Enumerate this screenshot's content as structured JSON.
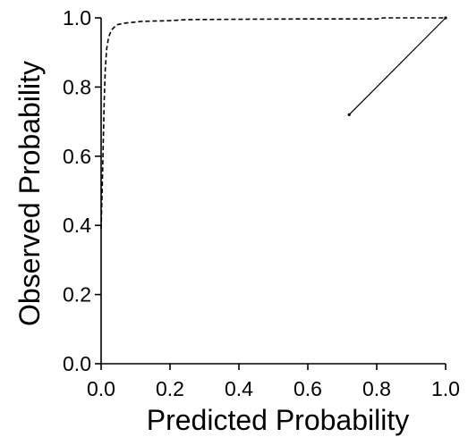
{
  "chart_data": {
    "type": "line",
    "title": "",
    "xlabel": "Predicted Probability",
    "ylabel": "Observed Probability",
    "xlim": [
      0.0,
      1.0
    ],
    "ylim": [
      0.0,
      1.0
    ],
    "x_ticks": [
      "0.0",
      "0.2",
      "0.4",
      "0.6",
      "0.8",
      "1.0"
    ],
    "y_ticks": [
      "0.0",
      "0.2",
      "0.4",
      "0.6",
      "0.8",
      "1.0"
    ],
    "grid": false,
    "legend": "none",
    "series": [
      {
        "style": "dashed",
        "color": "#000000",
        "x": [
          0.0,
          0.003,
          0.006,
          0.009,
          0.012,
          0.016,
          0.022,
          0.03,
          0.045,
          0.07,
          0.12,
          0.2,
          0.25,
          0.4,
          0.6,
          0.8,
          0.82,
          1.0
        ],
        "y": [
          0.39,
          0.5,
          0.63,
          0.76,
          0.85,
          0.91,
          0.945,
          0.965,
          0.98,
          0.985,
          0.99,
          0.992,
          0.995,
          0.996,
          0.997,
          0.997,
          1.0,
          1.0
        ]
      },
      {
        "style": "solid",
        "color": "#000000",
        "x": [
          0.72,
          1.0
        ],
        "y": [
          0.72,
          1.0
        ]
      }
    ]
  }
}
